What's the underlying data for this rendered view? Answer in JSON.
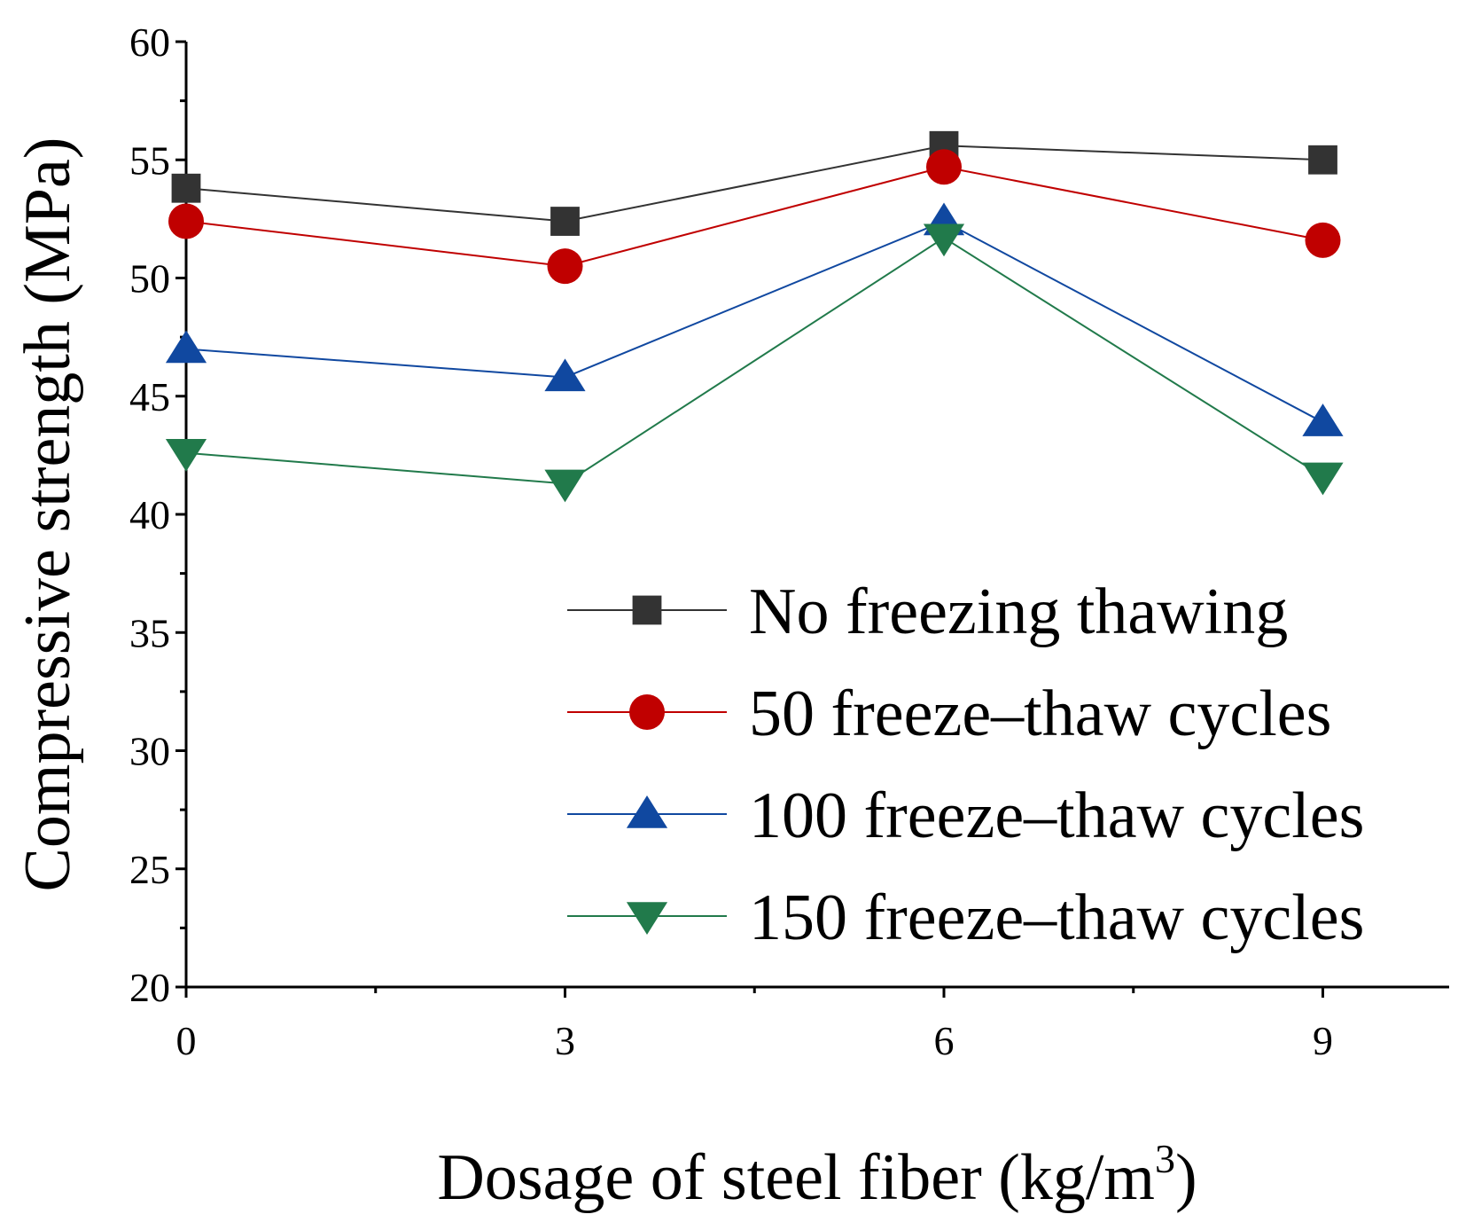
{
  "chart_data": {
    "type": "line",
    "title": "",
    "xlabel": "Dosage of steel fiber (kg/m",
    "xlabel_sup": "3",
    "xlabel_close": ")",
    "ylabel": "Compressive strength (MPa)",
    "x": [
      0,
      3,
      6,
      9
    ],
    "xlim": [
      0,
      10
    ],
    "ylim": [
      20,
      60
    ],
    "xticks": [
      "0",
      "3",
      "6",
      "9"
    ],
    "yticks": [
      "20",
      "25",
      "30",
      "35",
      "40",
      "45",
      "50",
      "55",
      "60"
    ],
    "grid": false,
    "legend_position": "bottom-right",
    "series": [
      {
        "name": "No freezing thawing",
        "values": [
          53.8,
          52.4,
          55.6,
          55.0
        ],
        "color": "#333333",
        "marker": "square"
      },
      {
        "name": "50 freeze–thaw cycles",
        "values": [
          52.4,
          50.5,
          54.7,
          51.6
        ],
        "color": "#c00000",
        "marker": "circle"
      },
      {
        "name": "100 freeze–thaw cycles",
        "values": [
          47.0,
          45.8,
          52.4,
          43.9
        ],
        "color": "#1048a0",
        "marker": "triangle-up"
      },
      {
        "name": "150 freeze–thaw cycles",
        "values": [
          42.6,
          41.3,
          51.7,
          41.6
        ],
        "color": "#217a4b",
        "marker": "triangle-down"
      }
    ]
  }
}
